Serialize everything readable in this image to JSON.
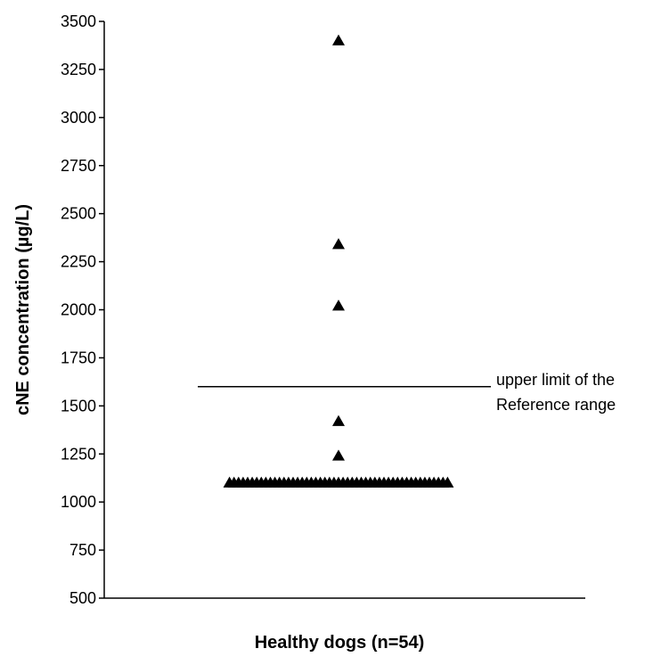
{
  "chart_data": {
    "type": "scatter",
    "xlabel": "Healthy dogs (n=54)",
    "ylabel": "cNE concentration (µg/L)",
    "ylim": [
      500,
      3500
    ],
    "yticks": [
      500,
      750,
      1000,
      1250,
      1500,
      1750,
      2000,
      2250,
      2500,
      2750,
      3000,
      3250,
      3500
    ],
    "grid": false,
    "marker": "triangle",
    "marker_color": "#000000",
    "reference_line": {
      "value": 1600,
      "label_line1": "upper limit of the",
      "label_line2": "Reference range"
    },
    "points": [
      3400,
      2340,
      2020,
      1420,
      1240,
      1100,
      1100,
      1100,
      1100,
      1100,
      1100,
      1100,
      1100,
      1100,
      1100,
      1100,
      1100,
      1100,
      1100,
      1100,
      1100,
      1100,
      1100,
      1100,
      1100,
      1100,
      1100,
      1100,
      1100,
      1100,
      1100,
      1100,
      1100,
      1100,
      1100,
      1100,
      1100,
      1100,
      1100,
      1100,
      1100,
      1100,
      1100,
      1100,
      1100,
      1100,
      1100,
      1100,
      1100,
      1100,
      1100,
      1100,
      1100,
      1100
    ]
  }
}
